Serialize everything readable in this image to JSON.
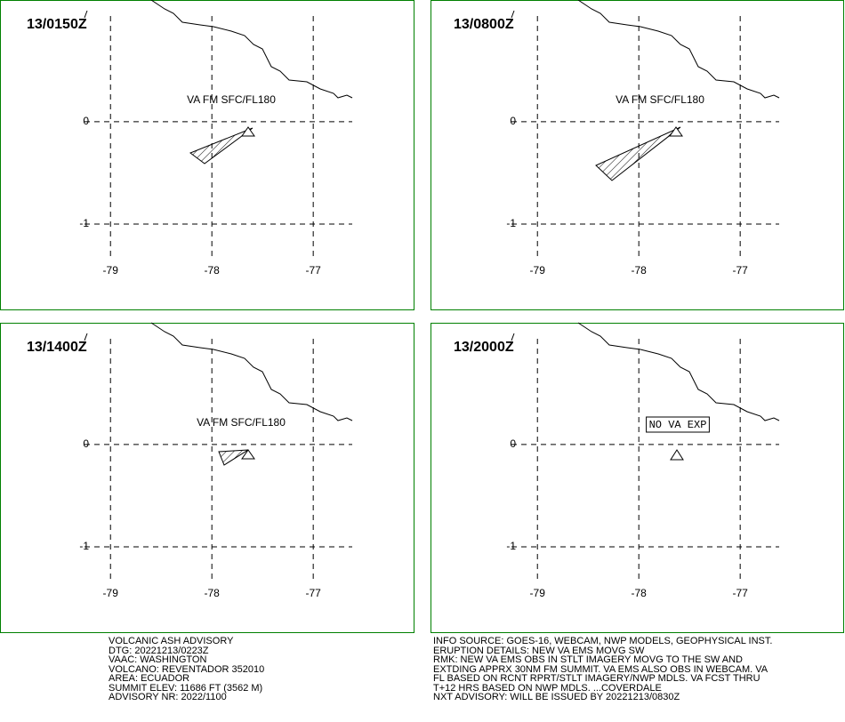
{
  "map": {
    "lon_range": [
      -80.09,
      -76.01
    ],
    "lat_range": [
      1.19,
      -1.835
    ]
  },
  "panels": [
    {
      "time": "13/0150Z",
      "label": "VA FM SFC/FL180",
      "boxed": false,
      "lon_ticks": [
        -79,
        -78,
        -77
      ],
      "lat_ticks": [
        0,
        -1
      ]
    },
    {
      "time": "13/0800Z",
      "label": "VA FM SFC/FL180",
      "boxed": false,
      "lon_ticks": [
        -79,
        -78,
        -77
      ],
      "lat_ticks": [
        0,
        -1
      ]
    },
    {
      "time": "13/1400Z",
      "label": "VA FM SFC/FL180",
      "boxed": false,
      "lon_ticks": [
        -79,
        -78,
        -77
      ],
      "lat_ticks": [
        0,
        -1
      ]
    },
    {
      "time": "13/2000Z",
      "label": "NO VA EXP",
      "boxed": true,
      "lon_ticks": [
        -79,
        -78,
        -77
      ],
      "lat_ticks": [
        0,
        -1
      ]
    }
  ],
  "advisory_left": [
    "VOLCANIC ASH ADVISORY",
    "DTG: 20221213/0223Z",
    "VAAC: WASHINGTON",
    "VOLCANO: REVENTADOR 352010",
    "AREA: ECUADOR",
    "SUMMIT ELEV: 11686 FT (3562 M)",
    "ADVISORY NR: 2022/1100"
  ],
  "advisory_right": [
    "INFO SOURCE: GOES-16, WEBCAM, NWP MODELS, GEOPHYSICAL INST.",
    "ERUPTION DETAILS: NEW VA EMS MOVG SW",
    "RMK: NEW VA EMS OBS IN STLT IMAGERY MOVG TO THE SW AND",
    "EXTDING APPRX 30NM FM SUMMIT. VA EMS ALSO OBS IN WEBCAM. VA",
    "FL BASED ON RCNT RPRT/STLT IMAGERY/NWP MDLS. VA FCST THRU",
    "T+12 HRS BASED ON NWP MDLS. ...COVERDALE",
    "NXT ADVISORY: WILL BE ISSUED BY 20221213/0830Z"
  ]
}
